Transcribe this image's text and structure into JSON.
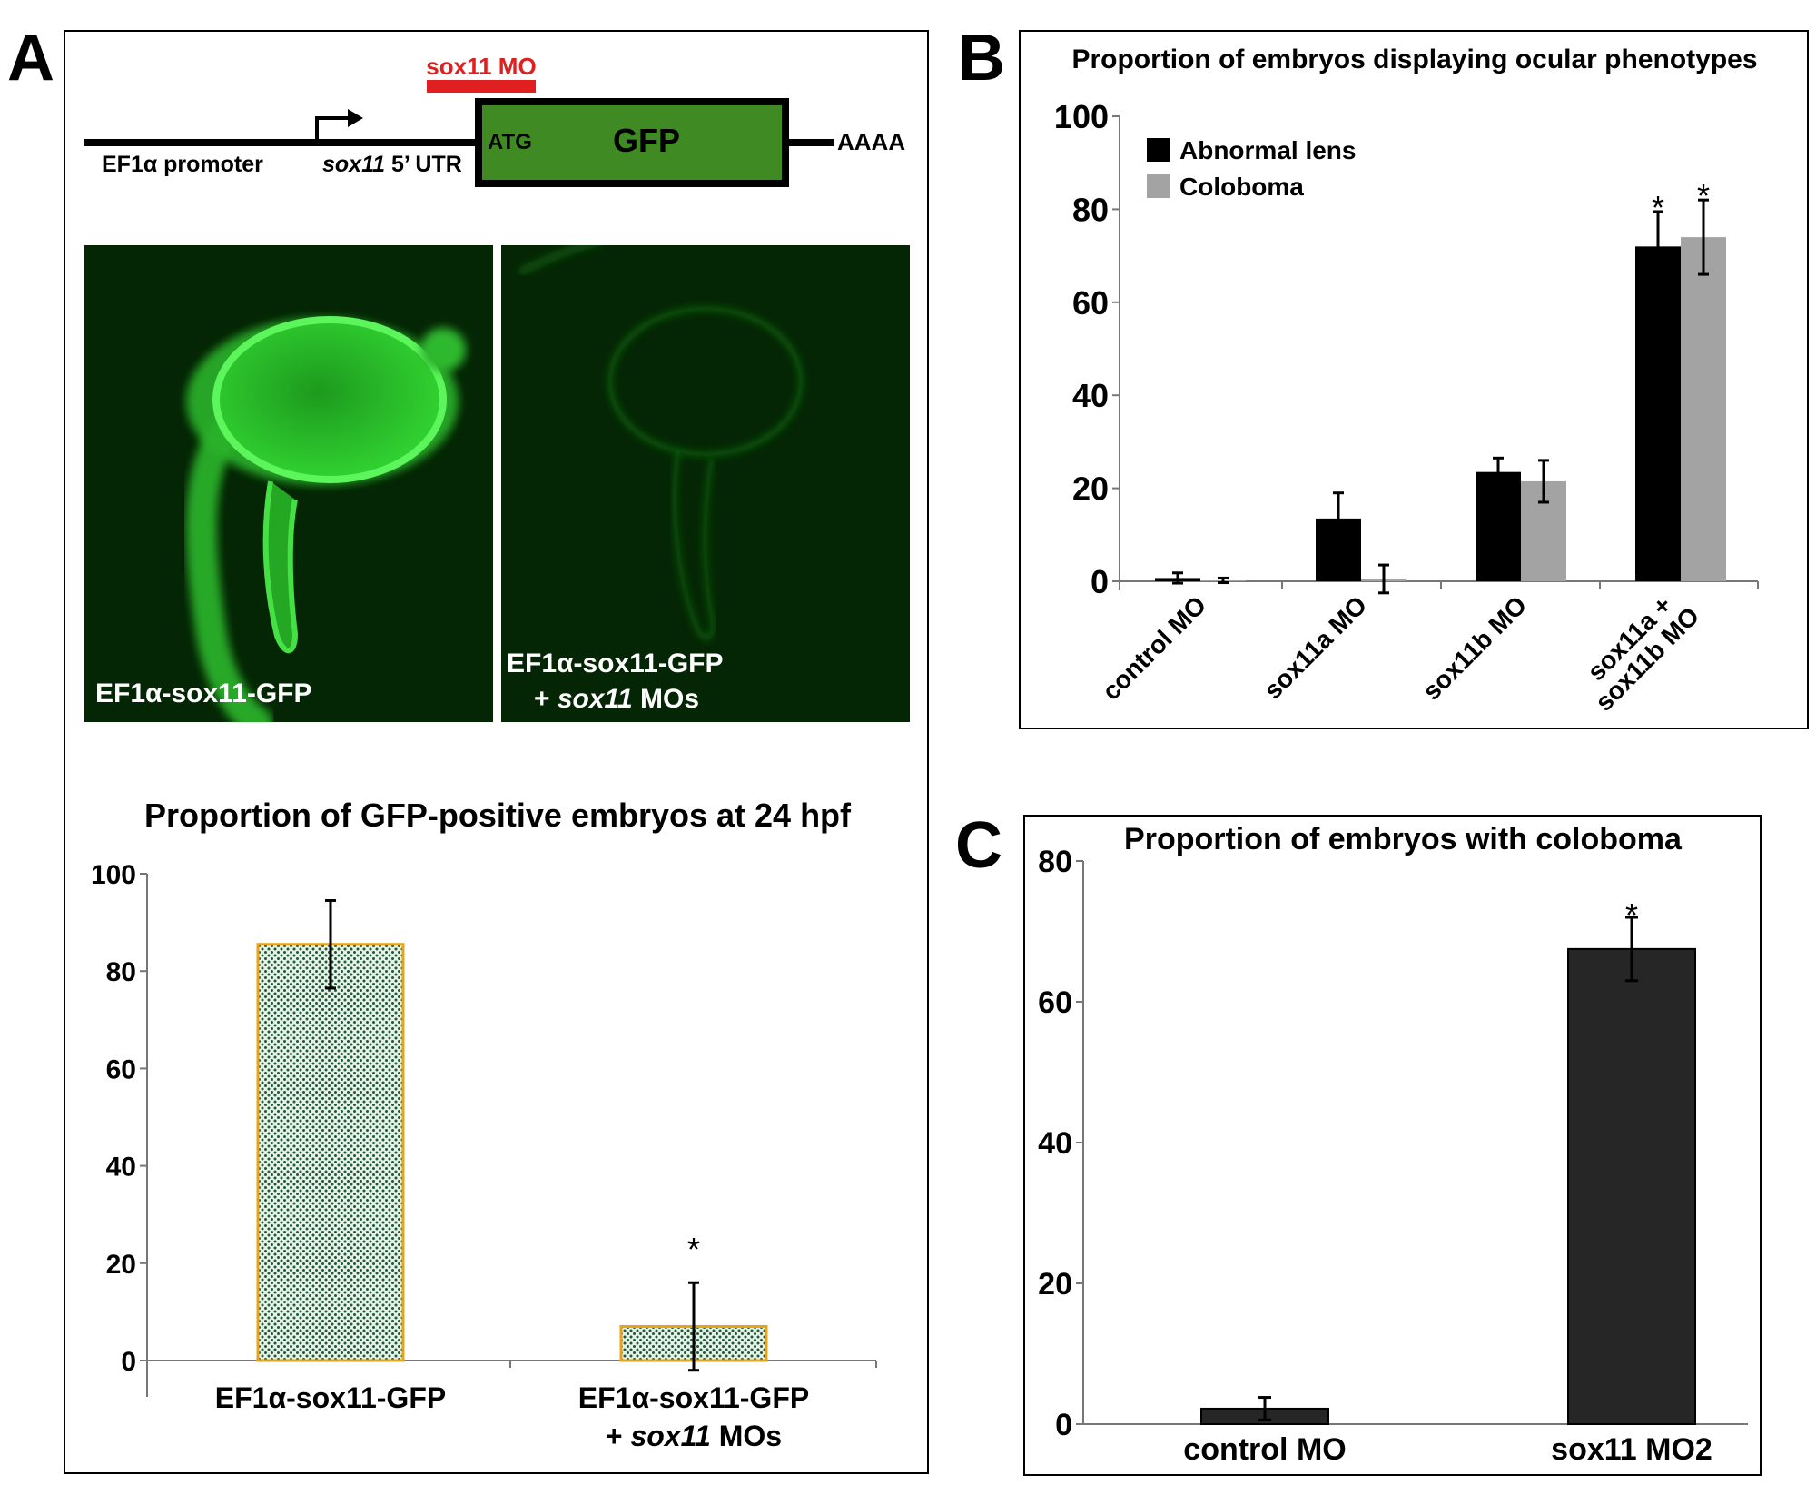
{
  "panel_labels": {
    "a": "A",
    "b": "B",
    "c": "C"
  },
  "construct": {
    "mo_label": "sox11 MO",
    "promoter": "EF1α promoter",
    "utr_gene": "sox11",
    "utr_rest": " 5’ UTR",
    "atg": "ATG",
    "gfp": "GFP",
    "polya": "AAAA"
  },
  "photos": {
    "left_caption": "EF1α-sox11-GFP",
    "right_caption_line1": "EF1α-sox11-GFP",
    "right_caption_line2_prefix": "+ ",
    "right_caption_line2_gene": "sox11",
    "right_caption_line2_suffix": " MOs"
  },
  "colors": {
    "gfp_box": "#3f8a23",
    "mo_bar": "#e02020",
    "bar_a_fill": "#e6f1e8",
    "bar_a_dots": "#1f5a37",
    "bar_a_border": "#e7a418",
    "lens_bar": "#000000",
    "coloboma_bar": "#a3a3a3",
    "c_bar": "#262626",
    "photo_bg": "#042604"
  },
  "chart_data": [
    {
      "id": "A",
      "type": "bar",
      "title": "Proportion of GFP-positive embryos at 24 hpf",
      "xlabel": "",
      "ylabel": "",
      "ylim": [
        0,
        100
      ],
      "yticks": [
        0,
        20,
        40,
        60,
        80,
        100
      ],
      "categories": [
        "EF1α-sox11-GFP",
        "EF1α-sox11-GFP + sox11 MOs"
      ],
      "values": [
        85.5,
        7
      ],
      "errors": [
        9,
        9
      ],
      "significance": [
        "",
        "*"
      ],
      "grid": false
    },
    {
      "id": "B",
      "type": "bar",
      "title": "Proportion of embryos displaying ocular phenotypes",
      "xlabel": "",
      "ylabel": "",
      "ylim": [
        0,
        100
      ],
      "yticks": [
        0,
        20,
        40,
        60,
        80,
        100
      ],
      "categories": [
        "control MO",
        "sox11a MO",
        "sox11b MO",
        "sox11a + sox11b MO"
      ],
      "series": [
        {
          "name": "Abnormal lens",
          "values": [
            0.7,
            13.5,
            23.5,
            72
          ],
          "errors": [
            1.1,
            5.5,
            3,
            7.5
          ]
        },
        {
          "name": "Coloboma",
          "values": [
            0.2,
            0.5,
            21.5,
            74
          ],
          "errors": [
            0.5,
            3,
            4.5,
            8
          ]
        }
      ],
      "significance": [
        "",
        "",
        "",
        "*"
      ],
      "legend": "top-left",
      "grid": false
    },
    {
      "id": "C",
      "type": "bar",
      "title": "Proportion of embryos with coloboma",
      "xlabel": "",
      "ylabel": "",
      "ylim": [
        0,
        80
      ],
      "yticks": [
        0,
        20,
        40,
        60,
        80
      ],
      "categories": [
        "control MO",
        "sox11 MO2"
      ],
      "values": [
        2.2,
        67.5
      ],
      "errors": [
        1.6,
        4.5
      ],
      "significance": [
        "",
        "*"
      ],
      "grid": false
    }
  ]
}
